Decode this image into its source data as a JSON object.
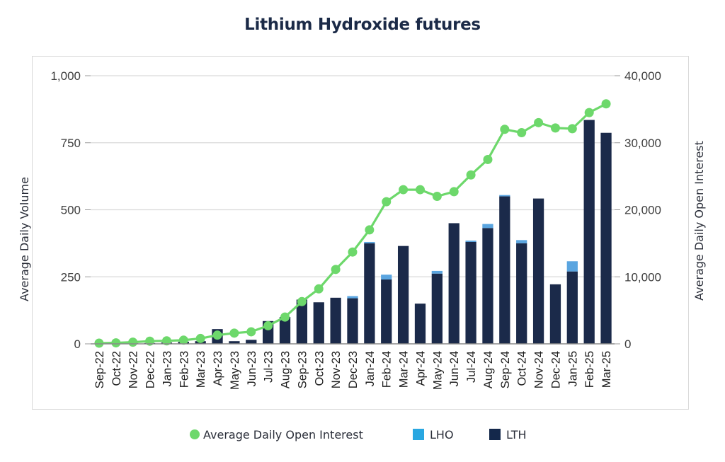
{
  "chart_data": {
    "type": "bar",
    "title": "Lithium Hydroxide futures",
    "ylabel": "Average Daily Volume",
    "y2label": "Average Daily Open Interest",
    "ylim": [
      0,
      1000
    ],
    "y2lim": [
      0,
      40000
    ],
    "yticks": [
      0,
      250,
      500,
      750,
      1000
    ],
    "ytick_labels": [
      "0",
      "250",
      "500",
      "750",
      "1,000"
    ],
    "y2ticks": [
      0,
      10000,
      20000,
      30000,
      40000
    ],
    "y2tick_labels": [
      "0",
      "10,000",
      "20,000",
      "30,000",
      "40,000"
    ],
    "grid": true,
    "legend_position": "bottom",
    "stacked": true,
    "categories": [
      "Sep-22",
      "Oct-22",
      "Nov-22",
      "Dec-22",
      "Jan-23",
      "Feb-23",
      "Mar-23",
      "Apr-23",
      "May-23",
      "Jun-23",
      "Jul-23",
      "Aug-23",
      "Sep-23",
      "Oct-23",
      "Nov-23",
      "Dec-23",
      "Jan-24",
      "Feb-24",
      "Mar-24",
      "Apr-24",
      "May-24",
      "Jun-24",
      "Jul-24",
      "Aug-24",
      "Sep-24",
      "Oct-24",
      "Nov-24",
      "Dec-24",
      "Jan-25",
      "Feb-25",
      "Mar-25"
    ],
    "series": [
      {
        "name": "LTH",
        "type": "bar",
        "axis": "left",
        "color": "#1b2a4a",
        "values": [
          0,
          0,
          2,
          3,
          5,
          8,
          10,
          55,
          10,
          15,
          85,
          100,
          165,
          155,
          172,
          170,
          375,
          240,
          365,
          150,
          262,
          450,
          380,
          432,
          550,
          375,
          542,
          222,
          270,
          835,
          787
        ]
      },
      {
        "name": "LHO",
        "type": "bar",
        "axis": "left",
        "color": "#5aa5e0",
        "values": [
          0,
          0,
          0,
          0,
          0,
          0,
          0,
          0,
          0,
          0,
          0,
          0,
          0,
          0,
          0,
          8,
          5,
          18,
          0,
          0,
          10,
          0,
          5,
          15,
          5,
          12,
          0,
          0,
          38,
          0,
          0
        ]
      },
      {
        "name": "Average Daily Open Interest",
        "type": "line",
        "axis": "right",
        "color": "#6dd86b",
        "values": [
          100,
          150,
          250,
          400,
          450,
          550,
          800,
          1300,
          1600,
          1800,
          2700,
          4000,
          6300,
          8200,
          11100,
          13700,
          17000,
          21200,
          23000,
          23000,
          22000,
          22700,
          25200,
          27500,
          32000,
          31500,
          33000,
          32200,
          32100,
          34500,
          35800
        ]
      }
    ]
  },
  "legend": {
    "items": [
      {
        "label": "Average Daily Open Interest",
        "color": "#6dd86b",
        "shape": "circle"
      },
      {
        "label": "LHO",
        "color": "#29a7e1",
        "shape": "square"
      },
      {
        "label": "LTH",
        "color": "#14284b",
        "shape": "square"
      }
    ]
  }
}
